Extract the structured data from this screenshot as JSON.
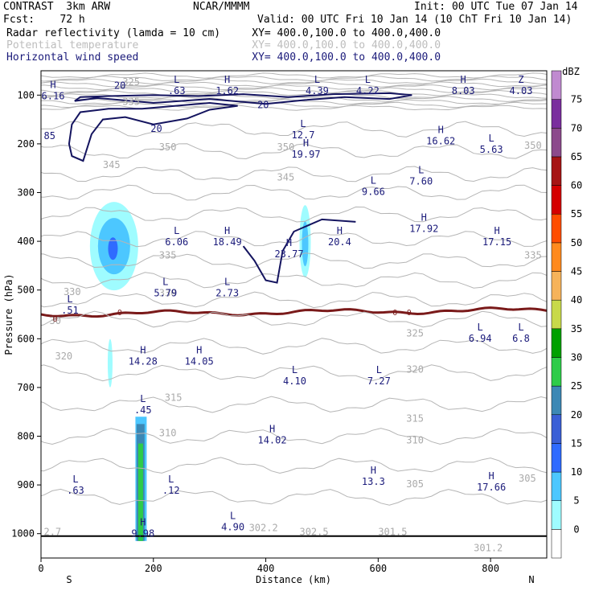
{
  "header": {
    "left1": "CONTRAST  3km ARW",
    "center1": "NCAR/MMMM",
    "right1": "Init: 00 UTC Tue 07 Jan 14",
    "left2": "Fcst:    72 h",
    "right2": "Valid: 00 UTC Fri 10 Jan 14 (10 ChT Fri 10 Jan 14)",
    "line3": "Radar reflectivity (lamda = 10 cm)     XY= 400.0,100.0 to 400.0,400.0",
    "line4": "Potential temperature                  XY= 400.0,100.0 to 400.0,400.0",
    "line5": "Horizontal wind speed                  XY= 400.0,100.0 to 400.0,400.0"
  },
  "chart_data": {
    "type": "cross-section",
    "xlabel": "Distance (km)",
    "ylabel": "Pressure (hPa)",
    "xlim": [
      0,
      900
    ],
    "ylim": [
      1050,
      50
    ],
    "x_ticks": [
      0,
      200,
      400,
      600,
      800
    ],
    "y_ticks": [
      100,
      200,
      300,
      400,
      500,
      600,
      700,
      800,
      900,
      1000
    ],
    "x_end_labels": {
      "left": "S",
      "right": "N"
    },
    "colorbar": {
      "unit": "dBZ",
      "levels": [
        0,
        5,
        10,
        15,
        20,
        25,
        30,
        35,
        40,
        45,
        50,
        55,
        60,
        65,
        70,
        75
      ],
      "colors": [
        "#ffffff",
        "#9ffcff",
        "#4cc7ff",
        "#2f6bff",
        "#3a5fd6",
        "#3c88b5",
        "#2ecc49",
        "#00a000",
        "#c8d94a",
        "#f6b35a",
        "#ff8a1e",
        "#ff4d00",
        "#d40000",
        "#a61414",
        "#8c4a8c",
        "#7a2e9e",
        "#c08ad0"
      ]
    },
    "theta_labels": [
      {
        "text": "345",
        "x": 110,
        "p": 250
      },
      {
        "text": "345",
        "x": 420,
        "p": 275
      },
      {
        "text": "350",
        "x": 210,
        "p": 213
      },
      {
        "text": "350",
        "x": 420,
        "p": 213
      },
      {
        "text": "350",
        "x": 860,
        "p": 210
      },
      {
        "text": "335",
        "x": 210,
        "p": 435
      },
      {
        "text": "335",
        "x": 860,
        "p": 435
      },
      {
        "text": "330",
        "x": 40,
        "p": 510
      },
      {
        "text": "330",
        "x": 210,
        "p": 513
      },
      {
        "text": "325",
        "x": 650,
        "p": 595
      },
      {
        "text": "320",
        "x": 25,
        "p": 642
      },
      {
        "text": "320",
        "x": 650,
        "p": 670
      },
      {
        "text": "315",
        "x": 220,
        "p": 727
      },
      {
        "text": "315",
        "x": 650,
        "p": 770
      },
      {
        "text": "310",
        "x": 210,
        "p": 800
      },
      {
        "text": "310",
        "x": 650,
        "p": 815
      },
      {
        "text": "305",
        "x": 650,
        "p": 905
      },
      {
        "text": "305",
        "x": 850,
        "p": 893
      },
      {
        "text": "302.5",
        "x": 460,
        "p": 1003
      },
      {
        "text": "302.2",
        "x": 370,
        "p": 995
      },
      {
        "text": "301.5",
        "x": 600,
        "p": 1003
      },
      {
        "text": "301.2",
        "x": 770,
        "p": 1036
      },
      {
        "text": "2.7",
        "x": 5,
        "p": 1003
      },
      {
        "text": "30",
        "x": 15,
        "p": 570
      },
      {
        "text": "325",
        "x": 145,
        "p": 80
      },
      {
        "text": "335",
        "x": 145,
        "p": 120
      }
    ],
    "hl_markers": [
      {
        "letter": "H",
        "value": "6.16",
        "x": 10,
        "p": 95
      },
      {
        "letter": "L",
        "value": ".63",
        "x": 230,
        "p": 85
      },
      {
        "letter": "H",
        "value": "1.62",
        "x": 320,
        "p": 85
      },
      {
        "letter": "L",
        "value": "4.39",
        "x": 480,
        "p": 85
      },
      {
        "letter": "L",
        "value": "4.22",
        "x": 570,
        "p": 85
      },
      {
        "letter": "H",
        "value": "8.03",
        "x": 740,
        "p": 85
      },
      {
        "letter": "Z",
        "value": "4.03",
        "x": 870,
        "p": 85
      },
      {
        "letter": "L",
        "value": "12.7",
        "x": 455,
        "p": 175
      },
      {
        "letter": "H",
        "value": "16.62",
        "x": 700,
        "p": 188
      },
      {
        "letter": "L",
        "value": "5.63",
        "x": 790,
        "p": 205
      },
      {
        "letter": "H",
        "value": "19.97",
        "x": 460,
        "p": 215
      },
      {
        "letter": "L",
        "value": "9.66",
        "x": 580,
        "p": 292
      },
      {
        "letter": "L",
        "value": "7.60",
        "x": 665,
        "p": 270
      },
      {
        "letter": "L",
        "value": "6.06",
        "x": 230,
        "p": 395
      },
      {
        "letter": "H",
        "value": "18.49",
        "x": 320,
        "p": 395
      },
      {
        "letter": "H",
        "value": "23.77",
        "x": 430,
        "p": 420
      },
      {
        "letter": "H",
        "value": "20.4",
        "x": 520,
        "p": 395
      },
      {
        "letter": "H",
        "value": "17.92",
        "x": 670,
        "p": 368
      },
      {
        "letter": "H",
        "value": "17.15",
        "x": 800,
        "p": 395
      },
      {
        "letter": "L",
        "value": "5.79",
        "x": 210,
        "p": 500
      },
      {
        "letter": "L",
        "value": "2.73",
        "x": 320,
        "p": 500
      },
      {
        "letter": "L",
        "value": ".51",
        "x": 40,
        "p": 535
      },
      {
        "letter": "H",
        "value": "14.28",
        "x": 170,
        "p": 640
      },
      {
        "letter": "H",
        "value": "14.05",
        "x": 270,
        "p": 640
      },
      {
        "letter": "L",
        "value": "4.10",
        "x": 440,
        "p": 680
      },
      {
        "letter": "L",
        "value": "7.27",
        "x": 590,
        "p": 680
      },
      {
        "letter": "L",
        "value": "6.94",
        "x": 770,
        "p": 593
      },
      {
        "letter": "L",
        "value": "6.8",
        "x": 890,
        "p": 593
      },
      {
        "letter": "L",
        "value": ".45",
        "x": 170,
        "p": 740
      },
      {
        "letter": "H",
        "value": "14.02",
        "x": 400,
        "p": 802
      },
      {
        "letter": "H",
        "value": "13.3",
        "x": 580,
        "p": 887
      },
      {
        "letter": "H",
        "value": "17.66",
        "x": 790,
        "p": 898
      },
      {
        "letter": "L",
        "value": ".63",
        "x": 50,
        "p": 905
      },
      {
        "letter": "L",
        "value": ".12",
        "x": 220,
        "p": 905
      },
      {
        "letter": "L",
        "value": "4.90",
        "x": 330,
        "p": 980
      },
      {
        "letter": "H",
        "value": "9.98",
        "x": 170,
        "p": 993
      }
    ],
    "wind_labels": [
      {
        "text": "20",
        "x": 130,
        "p": 87
      },
      {
        "text": "20",
        "x": 385,
        "p": 127
      },
      {
        "text": "20",
        "x": 195,
        "p": 175
      },
      {
        "text": "85",
        "x": 5,
        "p": 190
      }
    ],
    "zero_labels": [
      {
        "text": "0",
        "x": 140,
        "p": 545
      },
      {
        "text": "0",
        "x": 630,
        "p": 545
      },
      {
        "text": "0",
        "x": 655,
        "p": 545
      },
      {
        "text": "0",
        "x": 25,
        "p": 558
      }
    ]
  }
}
